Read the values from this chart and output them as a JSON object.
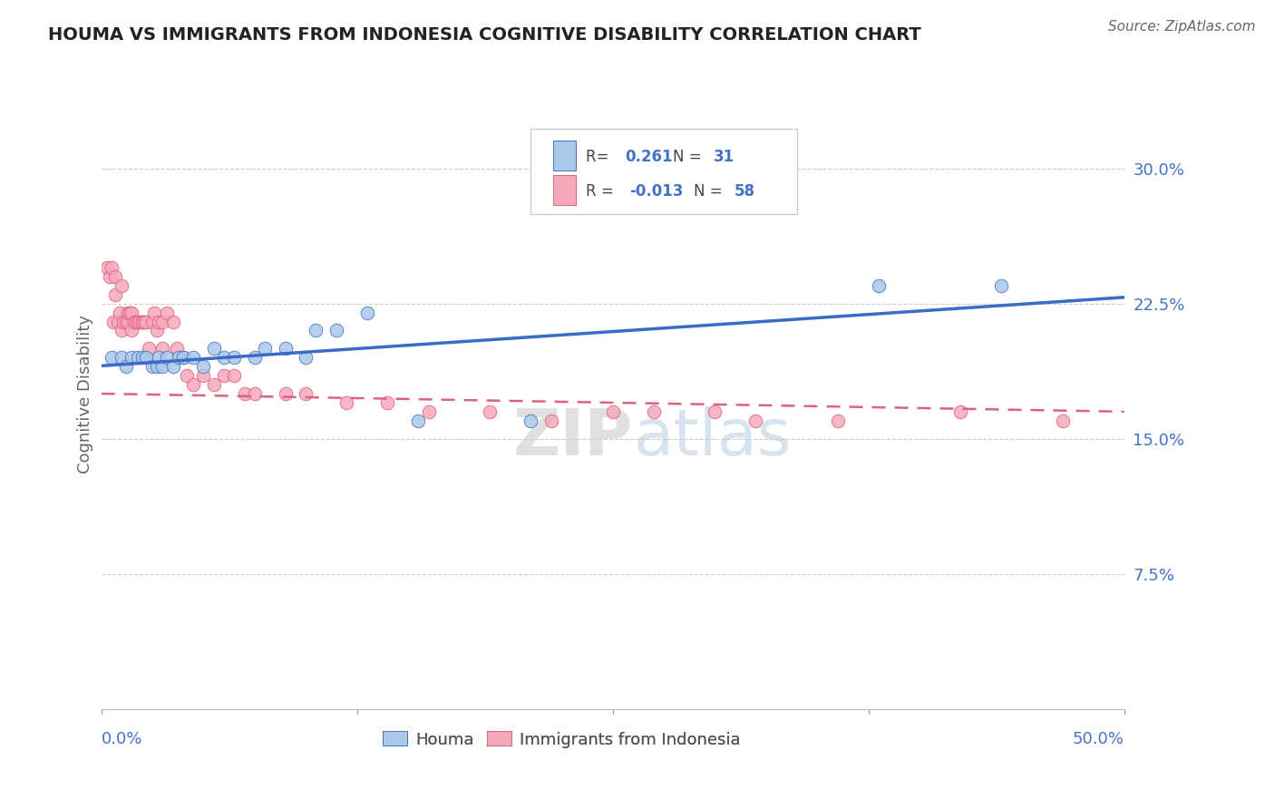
{
  "title": "HOUMA VS IMMIGRANTS FROM INDONESIA COGNITIVE DISABILITY CORRELATION CHART",
  "source": "Source: ZipAtlas.com",
  "ylabel": "Cognitive Disability",
  "xlim": [
    0.0,
    0.5
  ],
  "ylim": [
    0.0,
    0.35
  ],
  "yticks": [
    0.075,
    0.15,
    0.225,
    0.3
  ],
  "ytick_labels": [
    "7.5%",
    "15.0%",
    "22.5%",
    "30.0%"
  ],
  "xticks": [
    0.0,
    0.125,
    0.25,
    0.375,
    0.5
  ],
  "houma_R": 0.261,
  "houma_N": 31,
  "indonesia_R": -0.013,
  "indonesia_N": 58,
  "houma_color": "#aac8e8",
  "indonesia_color": "#f5aabb",
  "houma_edge_color": "#4472c4",
  "indonesia_edge_color": "#e06080",
  "houma_line_color": "#3a6bc8",
  "indonesia_line_color": "#e06080",
  "blue_text_color": "#4472c4",
  "grid_color": "#cccccc",
  "houma_x": [
    0.005,
    0.01,
    0.012,
    0.015,
    0.018,
    0.02,
    0.022,
    0.025,
    0.027,
    0.028,
    0.03,
    0.032,
    0.035,
    0.038,
    0.04,
    0.045,
    0.05,
    0.055,
    0.06,
    0.065,
    0.075,
    0.08,
    0.09,
    0.1,
    0.105,
    0.115,
    0.13,
    0.155,
    0.21,
    0.38,
    0.44
  ],
  "houma_y": [
    0.195,
    0.195,
    0.19,
    0.195,
    0.195,
    0.195,
    0.195,
    0.19,
    0.19,
    0.195,
    0.19,
    0.195,
    0.19,
    0.195,
    0.195,
    0.195,
    0.19,
    0.2,
    0.195,
    0.195,
    0.195,
    0.2,
    0.2,
    0.195,
    0.21,
    0.21,
    0.22,
    0.16,
    0.16,
    0.235,
    0.235
  ],
  "indonesia_x": [
    0.003,
    0.004,
    0.005,
    0.006,
    0.007,
    0.007,
    0.008,
    0.009,
    0.01,
    0.01,
    0.011,
    0.012,
    0.013,
    0.013,
    0.014,
    0.015,
    0.015,
    0.016,
    0.017,
    0.018,
    0.019,
    0.02,
    0.02,
    0.021,
    0.022,
    0.023,
    0.025,
    0.026,
    0.027,
    0.028,
    0.03,
    0.03,
    0.032,
    0.035,
    0.037,
    0.04,
    0.042,
    0.045,
    0.05,
    0.055,
    0.06,
    0.065,
    0.07,
    0.075,
    0.09,
    0.1,
    0.12,
    0.14,
    0.16,
    0.19,
    0.22,
    0.25,
    0.27,
    0.3,
    0.32,
    0.36,
    0.42,
    0.47
  ],
  "indonesia_y": [
    0.245,
    0.24,
    0.245,
    0.215,
    0.23,
    0.24,
    0.215,
    0.22,
    0.21,
    0.235,
    0.215,
    0.215,
    0.215,
    0.22,
    0.22,
    0.22,
    0.21,
    0.215,
    0.215,
    0.215,
    0.215,
    0.215,
    0.215,
    0.215,
    0.215,
    0.2,
    0.215,
    0.22,
    0.21,
    0.215,
    0.215,
    0.2,
    0.22,
    0.215,
    0.2,
    0.195,
    0.185,
    0.18,
    0.185,
    0.18,
    0.185,
    0.185,
    0.175,
    0.175,
    0.175,
    0.175,
    0.17,
    0.17,
    0.165,
    0.165,
    0.16,
    0.165,
    0.165,
    0.165,
    0.16,
    0.16,
    0.165,
    0.16
  ]
}
